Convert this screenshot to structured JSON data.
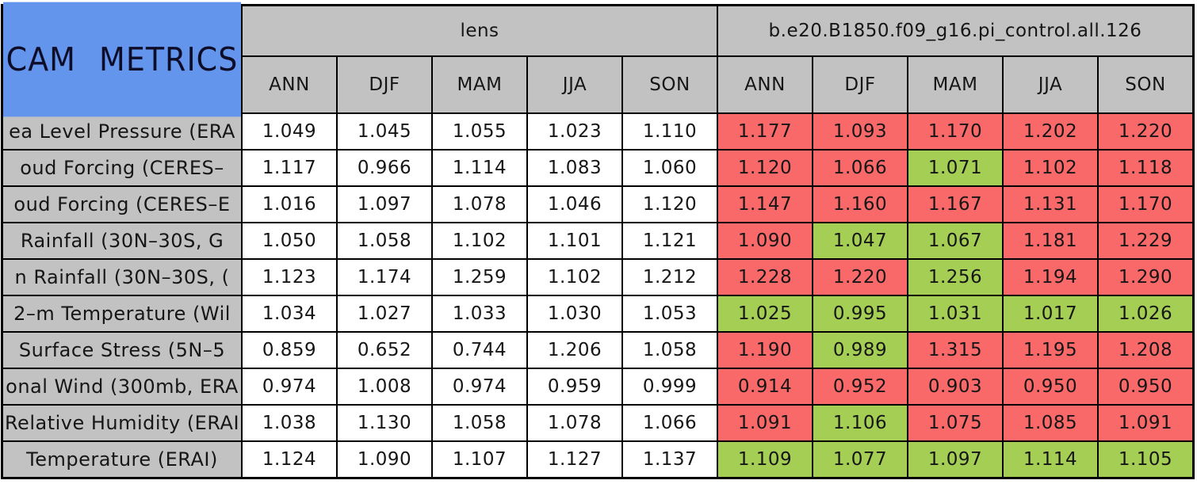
{
  "colors": {
    "header_blue": "#6495ED",
    "header_gray": "#C2C2C2",
    "cell_white": "#FFFFFF",
    "cell_red": "#FA6969",
    "cell_green": "#A5CE55",
    "grid_line": "#000000"
  },
  "chart_data": {
    "type": "table",
    "title": "CAM METRICS",
    "column_groups": [
      "lens",
      "b.e20.B1850.f09_g16.pi_control.all.126"
    ],
    "season_columns": [
      "ANN",
      "DJF",
      "MAM",
      "JJA",
      "SON"
    ],
    "rows": [
      {
        "label": "ea Level Pressure (ERA",
        "lens": [
          "1.049",
          "1.045",
          "1.055",
          "1.023",
          "1.110"
        ],
        "case": [
          "1.177",
          "1.093",
          "1.170",
          "1.202",
          "1.220"
        ],
        "case_colors": [
          "red",
          "red",
          "red",
          "red",
          "red"
        ]
      },
      {
        "label": "oud Forcing (CERES–",
        "lens": [
          "1.117",
          "0.966",
          "1.114",
          "1.083",
          "1.060"
        ],
        "case": [
          "1.120",
          "1.066",
          "1.071",
          "1.102",
          "1.118"
        ],
        "case_colors": [
          "red",
          "red",
          "green",
          "red",
          "red"
        ]
      },
      {
        "label": "oud Forcing (CERES–E",
        "lens": [
          "1.016",
          "1.097",
          "1.078",
          "1.046",
          "1.120"
        ],
        "case": [
          "1.147",
          "1.160",
          "1.167",
          "1.131",
          "1.170"
        ],
        "case_colors": [
          "red",
          "red",
          "red",
          "red",
          "red"
        ]
      },
      {
        "label": "Rainfall (30N–30S, G",
        "lens": [
          "1.050",
          "1.058",
          "1.102",
          "1.101",
          "1.121"
        ],
        "case": [
          "1.090",
          "1.047",
          "1.067",
          "1.181",
          "1.229"
        ],
        "case_colors": [
          "red",
          "green",
          "green",
          "red",
          "red"
        ]
      },
      {
        "label": "n Rainfall (30N–30S, (",
        "lens": [
          "1.123",
          "1.174",
          "1.259",
          "1.102",
          "1.212"
        ],
        "case": [
          "1.228",
          "1.220",
          "1.256",
          "1.194",
          "1.290"
        ],
        "case_colors": [
          "red",
          "red",
          "green",
          "red",
          "red"
        ]
      },
      {
        "label": "2–m Temperature (Wil",
        "lens": [
          "1.034",
          "1.027",
          "1.033",
          "1.030",
          "1.053"
        ],
        "case": [
          "1.025",
          "0.995",
          "1.031",
          "1.017",
          "1.026"
        ],
        "case_colors": [
          "green",
          "green",
          "green",
          "green",
          "green"
        ]
      },
      {
        "label": "Surface Stress (5N–5",
        "lens": [
          "0.859",
          "0.652",
          "0.744",
          "1.206",
          "1.058"
        ],
        "case": [
          "1.190",
          "0.989",
          "1.315",
          "1.195",
          "1.208"
        ],
        "case_colors": [
          "red",
          "green",
          "red",
          "red",
          "red"
        ]
      },
      {
        "label": "onal Wind (300mb, ERA",
        "lens": [
          "0.974",
          "1.008",
          "0.974",
          "0.959",
          "0.999"
        ],
        "case": [
          "0.914",
          "0.952",
          "0.903",
          "0.950",
          "0.950"
        ],
        "case_colors": [
          "red",
          "red",
          "red",
          "red",
          "red"
        ]
      },
      {
        "label": "Relative Humidity (ERAI",
        "lens": [
          "1.038",
          "1.130",
          "1.058",
          "1.078",
          "1.066"
        ],
        "case": [
          "1.091",
          "1.106",
          "1.075",
          "1.085",
          "1.091"
        ],
        "case_colors": [
          "red",
          "green",
          "red",
          "red",
          "red"
        ]
      },
      {
        "label": "Temperature (ERAI)",
        "lens": [
          "1.124",
          "1.090",
          "1.107",
          "1.127",
          "1.137"
        ],
        "case": [
          "1.109",
          "1.077",
          "1.097",
          "1.114",
          "1.105"
        ],
        "case_colors": [
          "green",
          "green",
          "green",
          "green",
          "green"
        ]
      }
    ]
  }
}
